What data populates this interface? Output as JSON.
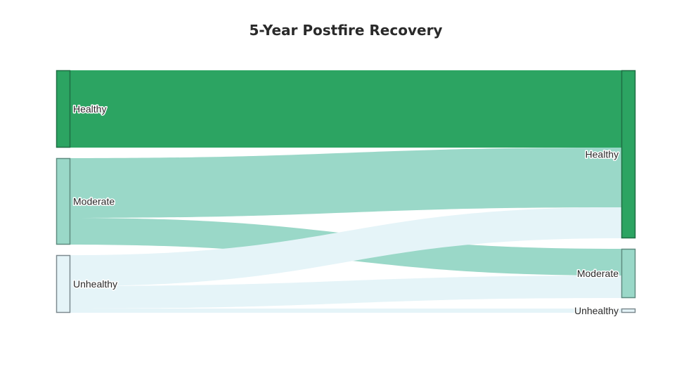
{
  "chart_data": {
    "type": "sankey",
    "title": "5-Year Postfire Recovery",
    "nodes": [
      {
        "id": "src-healthy",
        "label": "Healthy",
        "column": 0,
        "fill": "#2ca462",
        "stroke": "#1f6e44"
      },
      {
        "id": "src-moderate",
        "label": "Moderate",
        "column": 0,
        "fill": "#9ad8c8",
        "stroke": "#5f8c80"
      },
      {
        "id": "src-unhealthy",
        "label": "Unhealthy",
        "column": 0,
        "fill": "#e5f4f8",
        "stroke": "#7d8a90"
      },
      {
        "id": "tgt-healthy",
        "label": "Healthy",
        "column": 1,
        "fill": "#2ca462",
        "stroke": "#1f6e44"
      },
      {
        "id": "tgt-moderate",
        "label": "Moderate",
        "column": 1,
        "fill": "#9ad8c8",
        "stroke": "#5f8c80"
      },
      {
        "id": "tgt-unhealthy",
        "label": "Unhealthy",
        "column": 1,
        "fill": "#e5f4f8",
        "stroke": "#7d8a90"
      }
    ],
    "links": [
      {
        "source": "src-healthy",
        "target": "tgt-healthy",
        "value": 110,
        "color": "#2ca462"
      },
      {
        "source": "src-moderate",
        "target": "tgt-healthy",
        "value": 85,
        "color": "#9ad8c8"
      },
      {
        "source": "src-moderate",
        "target": "tgt-moderate",
        "value": 38,
        "color": "#9ad8c8"
      },
      {
        "source": "src-unhealthy",
        "target": "tgt-healthy",
        "value": 44,
        "color": "#e5f4f8"
      },
      {
        "source": "src-unhealthy",
        "target": "tgt-moderate",
        "value": 32,
        "color": "#e5f4f8"
      },
      {
        "source": "src-unhealthy",
        "target": "tgt-unhealthy",
        "value": 6,
        "color": "#e5f4f8"
      }
    ]
  }
}
